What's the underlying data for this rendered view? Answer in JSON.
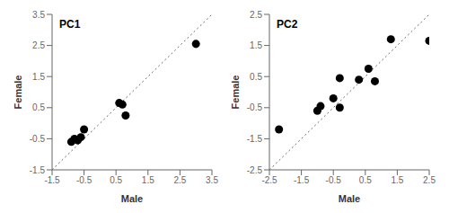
{
  "chart_data": [
    {
      "type": "scatter",
      "annotations": [
        "PC1"
      ],
      "xlabel": "Male",
      "ylabel": "Female",
      "x": [
        -0.9,
        -0.8,
        -0.7,
        -0.6,
        -0.5,
        0.6,
        0.7,
        0.8,
        3.0
      ],
      "values": [
        -0.6,
        -0.5,
        -0.55,
        -0.45,
        -0.2,
        0.65,
        0.6,
        0.25,
        2.55
      ],
      "color": "black",
      "xlim": [
        -1.5,
        3.5
      ],
      "ylim": [
        -1.5,
        3.5
      ],
      "xticks": [
        -1.5,
        -0.5,
        0.5,
        1.5,
        2.5,
        3.5
      ],
      "yticks": [
        -1.5,
        -0.5,
        0.5,
        1.5,
        2.5,
        3.5
      ]
    },
    {
      "type": "scatter",
      "annotations": [
        "PC2"
      ],
      "xlabel": "Male",
      "ylabel": "Female",
      "x": [
        -2.2,
        -1.0,
        -0.9,
        -0.5,
        -0.3,
        -0.3,
        0.3,
        0.6,
        0.8,
        1.3,
        2.5
      ],
      "values": [
        -1.2,
        -0.6,
        -0.45,
        -0.2,
        0.45,
        -0.5,
        0.4,
        0.75,
        0.35,
        1.7,
        1.65
      ],
      "color": "black",
      "xlim": [
        -2.5,
        2.5
      ],
      "ylim": [
        -2.5,
        2.5
      ],
      "xticks": [
        -2.5,
        -1.5,
        -0.5,
        0.5,
        1.5,
        2.5
      ],
      "yticks": [
        -2.5,
        -1.5,
        -0.5,
        0.5,
        1.5,
        2.5
      ]
    }
  ]
}
